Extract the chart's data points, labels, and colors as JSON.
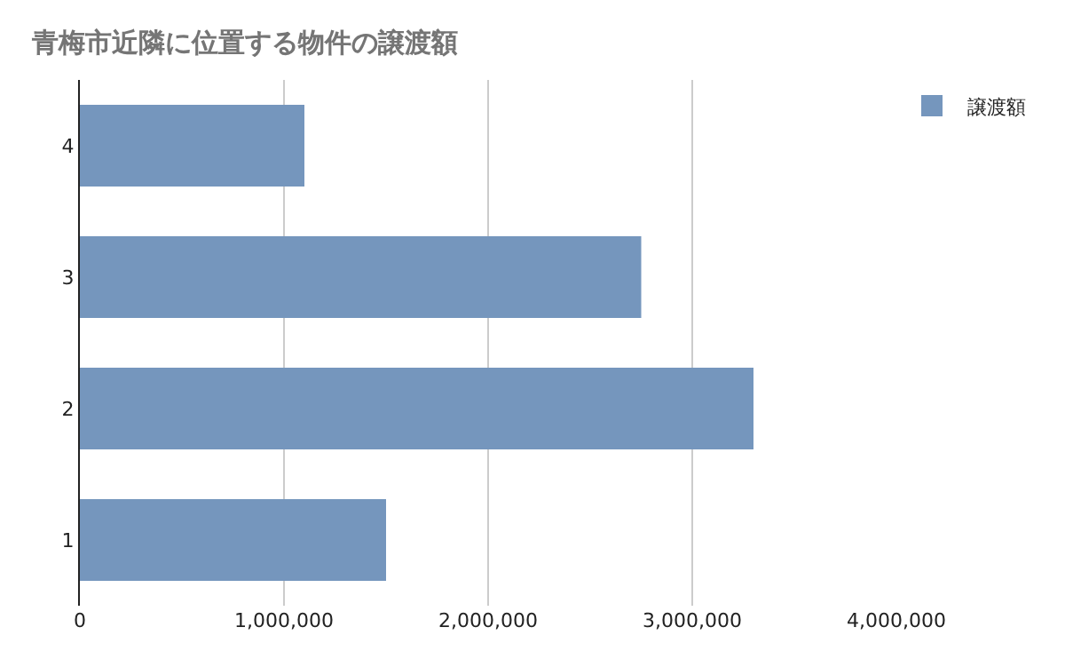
{
  "chart_data": {
    "type": "bar",
    "orientation": "horizontal",
    "title": "青梅市近隣に位置する物件の譲渡額",
    "categories": [
      "4",
      "3",
      "2",
      "1"
    ],
    "series": [
      {
        "name": "譲渡額",
        "color": "#7596bd",
        "values": [
          1100000,
          2750000,
          3300000,
          1500000
        ]
      }
    ],
    "xlim": [
      0,
      4000000
    ],
    "xticks": [
      {
        "value": 0,
        "label": "0"
      },
      {
        "value": 1000000,
        "label": "1,000,000"
      },
      {
        "value": 2000000,
        "label": "2,000,000"
      },
      {
        "value": 3000000,
        "label": "3,000,000"
      },
      {
        "value": 4000000,
        "label": "4,000,000"
      }
    ],
    "grid": "x",
    "legend": "top right"
  }
}
